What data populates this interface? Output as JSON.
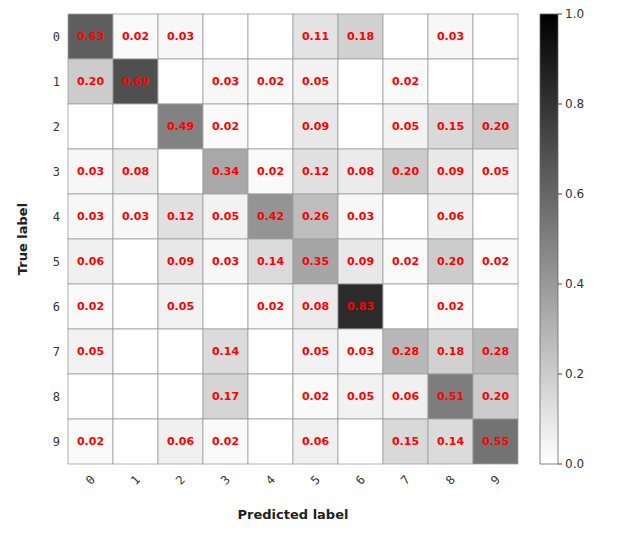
{
  "chart_data": {
    "type": "heatmap",
    "xlabel": "Predicted label",
    "ylabel": "True label",
    "x_categories": [
      "0",
      "1",
      "2",
      "3",
      "4",
      "5",
      "6",
      "7",
      "8",
      "9"
    ],
    "y_categories": [
      "0",
      "1",
      "2",
      "3",
      "4",
      "5",
      "6",
      "7",
      "8",
      "9"
    ],
    "values": [
      [
        0.63,
        0.02,
        0.03,
        0.0,
        0.0,
        0.11,
        0.18,
        0.0,
        0.03,
        0.0
      ],
      [
        0.2,
        0.69,
        0.0,
        0.03,
        0.02,
        0.05,
        0.0,
        0.02,
        0.0,
        0.0
      ],
      [
        0.0,
        0.0,
        0.49,
        0.02,
        0.0,
        0.09,
        0.0,
        0.05,
        0.15,
        0.2
      ],
      [
        0.03,
        0.08,
        0.0,
        0.34,
        0.02,
        0.12,
        0.08,
        0.2,
        0.09,
        0.05
      ],
      [
        0.03,
        0.03,
        0.12,
        0.05,
        0.42,
        0.26,
        0.03,
        0.0,
        0.06,
        0.0
      ],
      [
        0.06,
        0.0,
        0.09,
        0.03,
        0.14,
        0.35,
        0.09,
        0.02,
        0.2,
        0.02
      ],
      [
        0.02,
        0.0,
        0.05,
        0.0,
        0.02,
        0.08,
        0.83,
        0.0,
        0.02,
        0.0
      ],
      [
        0.05,
        0.0,
        0.0,
        0.14,
        0.0,
        0.05,
        0.03,
        0.28,
        0.18,
        0.28
      ],
      [
        0.0,
        0.0,
        0.0,
        0.17,
        0.0,
        0.02,
        0.05,
        0.06,
        0.51,
        0.2
      ],
      [
        0.02,
        0.0,
        0.06,
        0.02,
        0.0,
        0.06,
        0.0,
        0.15,
        0.14,
        0.55
      ]
    ],
    "data_labels": true,
    "value_labels": [
      [
        "0.63",
        "0.02",
        "0.03",
        null,
        null,
        "0.11",
        "0.18",
        null,
        "0.03",
        null
      ],
      [
        "0.20",
        "0.69",
        null,
        "0.03",
        "0.02",
        "0.05",
        null,
        "0.02",
        null,
        null
      ],
      [
        null,
        null,
        "0.49",
        "0.02",
        null,
        "0.09",
        null,
        "0.05",
        "0.15",
        "0.20"
      ],
      [
        "0.03",
        "0.08",
        null,
        "0.34",
        "0.02",
        "0.12",
        "0.08",
        "0.20",
        "0.09",
        "0.05"
      ],
      [
        "0.03",
        "0.03",
        "0.12",
        "0.05",
        "0.42",
        "0.26",
        "0.03",
        null,
        "0.06",
        null
      ],
      [
        "0.06",
        null,
        "0.09",
        "0.03",
        "0.14",
        "0.35",
        "0.09",
        "0.02",
        "0.20",
        "0.02"
      ],
      [
        "0.02",
        null,
        "0.05",
        null,
        "0.02",
        "0.08",
        "0.83",
        null,
        "0.02",
        null
      ],
      [
        "0.05",
        null,
        null,
        "0.14",
        null,
        "0.05",
        "0.03",
        "0.28",
        "0.18",
        "0.28"
      ],
      [
        null,
        null,
        null,
        "0.17",
        null,
        "0.02",
        "0.05",
        "0.06",
        "0.51",
        "0.20"
      ],
      [
        "0.02",
        null,
        "0.06",
        "0.02",
        null,
        "0.06",
        null,
        "0.15",
        "0.14",
        "0.55"
      ]
    ],
    "zlim": [
      0.0,
      1.0
    ],
    "zticks": [
      {
        "value": 0.0,
        "label": "0.0"
      },
      0.2,
      0.4,
      0.6,
      0.8,
      {
        "value": 1.0,
        "label": "1.0"
      }
    ]
  }
}
